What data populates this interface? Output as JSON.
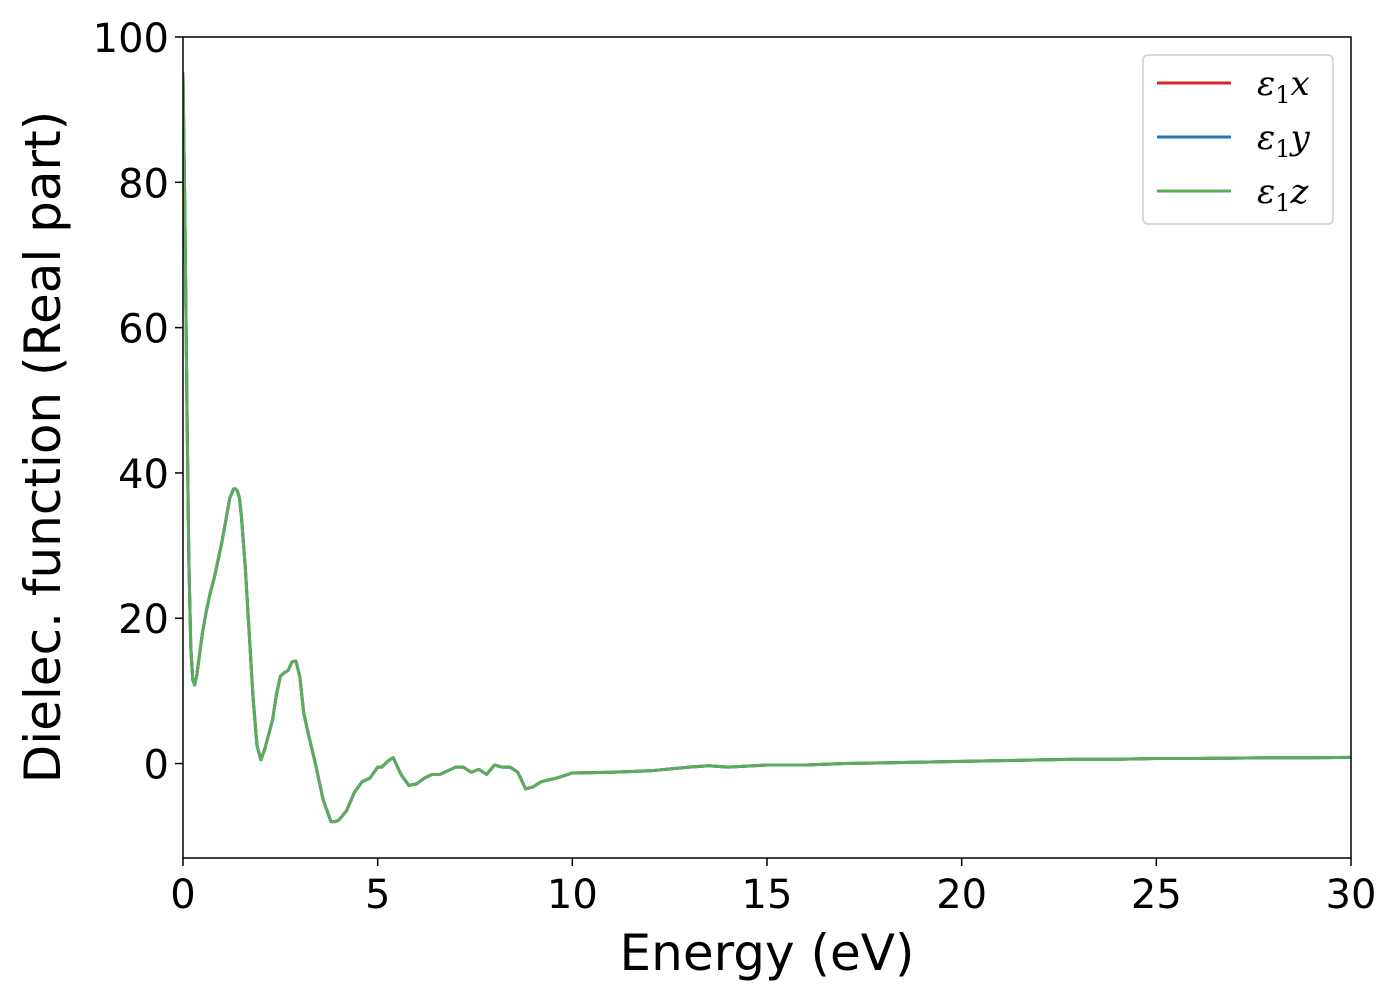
{
  "chart_data": {
    "type": "line",
    "xlabel": "Energy (eV)",
    "ylabel": "Dielec. function (Real part)",
    "xlim": [
      0,
      30
    ],
    "ylim": [
      -13,
      100
    ],
    "xticks": [
      0,
      5,
      10,
      15,
      20,
      25,
      30
    ],
    "yticks": [
      0,
      20,
      40,
      60,
      80,
      100
    ],
    "grid": false,
    "legend_position": "top-right",
    "series": [
      {
        "name": "ε₁x",
        "legend": {
          "base": "ε",
          "sub": "1",
          "var": "x"
        },
        "color": "#d62728",
        "x": [
          0.0,
          0.05,
          0.1,
          0.15,
          0.2,
          0.25,
          0.3,
          0.35,
          0.4,
          0.5,
          0.6,
          0.7,
          0.8,
          0.9,
          1.0,
          1.1,
          1.2,
          1.3,
          1.35,
          1.4,
          1.45,
          1.5,
          1.6,
          1.7,
          1.8,
          1.9,
          2.0,
          2.1,
          2.2,
          2.3,
          2.4,
          2.5,
          2.6,
          2.7,
          2.8,
          2.9,
          3.0,
          3.1,
          3.2,
          3.4,
          3.6,
          3.8,
          3.9,
          4.0,
          4.2,
          4.4,
          4.6,
          4.8,
          5.0,
          5.1,
          5.2,
          5.3,
          5.4,
          5.6,
          5.8,
          6.0,
          6.2,
          6.4,
          6.6,
          6.8,
          7.0,
          7.2,
          7.4,
          7.6,
          7.8,
          8.0,
          8.2,
          8.4,
          8.6,
          8.8,
          9.0,
          9.2,
          9.6,
          10.0,
          11.0,
          12.0,
          13.0,
          13.5,
          14.0,
          15.0,
          16.0,
          17.0,
          18.0,
          19.0,
          20.0,
          21.0,
          22.0,
          23.0,
          24.0,
          25.0,
          26.0,
          27.0,
          28.0,
          29.0,
          30.0
        ],
        "y": [
          95,
          75,
          50,
          28,
          16,
          11.5,
          10.8,
          12,
          14,
          18,
          21,
          23.5,
          25.5,
          28,
          30.5,
          33.5,
          36.5,
          37.8,
          37.8,
          37.5,
          36.5,
          34,
          27,
          18,
          9,
          2.5,
          0.5,
          2,
          4,
          6,
          9.5,
          12,
          12.5,
          12.8,
          14,
          14.1,
          12,
          7,
          4.5,
          0,
          -5,
          -8,
          -8,
          -7.8,
          -6.5,
          -4,
          -2.5,
          -2,
          -0.5,
          -0.5,
          0,
          0.5,
          0.8,
          -1.5,
          -3,
          -2.8,
          -2,
          -1.5,
          -1.5,
          -1,
          -0.5,
          -0.5,
          -1.2,
          -0.8,
          -1.5,
          -0.2,
          -0.5,
          -0.5,
          -1.2,
          -3.5,
          -3.2,
          -2.5,
          -2.0,
          -1.3,
          -1.2,
          -1.0,
          -0.5,
          -0.3,
          -0.5,
          -0.2,
          -0.2,
          0.0,
          0.1,
          0.2,
          0.3,
          0.4,
          0.5,
          0.6,
          0.6,
          0.7,
          0.7,
          0.75,
          0.8,
          0.8,
          0.85
        ]
      },
      {
        "name": "ε₁y",
        "legend": {
          "base": "ε",
          "sub": "1",
          "var": "y"
        },
        "color": "#1f77b4",
        "x": [
          0.0,
          0.05,
          0.1,
          0.15,
          0.2,
          0.25,
          0.3,
          0.35,
          0.4,
          0.5,
          0.6,
          0.7,
          0.8,
          0.9,
          1.0,
          1.1,
          1.2,
          1.3,
          1.35,
          1.4,
          1.45,
          1.5,
          1.6,
          1.7,
          1.8,
          1.9,
          2.0,
          2.1,
          2.2,
          2.3,
          2.4,
          2.5,
          2.6,
          2.7,
          2.8,
          2.9,
          3.0,
          3.1,
          3.2,
          3.4,
          3.6,
          3.8,
          3.9,
          4.0,
          4.2,
          4.4,
          4.6,
          4.8,
          5.0,
          5.1,
          5.2,
          5.3,
          5.4,
          5.6,
          5.8,
          6.0,
          6.2,
          6.4,
          6.6,
          6.8,
          7.0,
          7.2,
          7.4,
          7.6,
          7.8,
          8.0,
          8.2,
          8.4,
          8.6,
          8.8,
          9.0,
          9.2,
          9.6,
          10.0,
          11.0,
          12.0,
          13.0,
          13.5,
          14.0,
          15.0,
          16.0,
          17.0,
          18.0,
          19.0,
          20.0,
          21.0,
          22.0,
          23.0,
          24.0,
          25.0,
          26.0,
          27.0,
          28.0,
          29.0,
          30.0
        ],
        "y": [
          95,
          75,
          50,
          28,
          16,
          11.5,
          10.8,
          12,
          14,
          18,
          21,
          23.5,
          25.5,
          28,
          30.5,
          33.5,
          36.5,
          37.8,
          37.8,
          37.5,
          36.5,
          34,
          27,
          18,
          9,
          2.5,
          0.5,
          2,
          4,
          6,
          9.5,
          12,
          12.5,
          12.8,
          14,
          14.1,
          12,
          7,
          4.5,
          0,
          -5,
          -8,
          -8,
          -7.8,
          -6.5,
          -4,
          -2.5,
          -2,
          -0.5,
          -0.5,
          0,
          0.5,
          0.8,
          -1.5,
          -3,
          -2.8,
          -2,
          -1.5,
          -1.5,
          -1,
          -0.5,
          -0.5,
          -1.2,
          -0.8,
          -1.5,
          -0.2,
          -0.5,
          -0.5,
          -1.2,
          -3.5,
          -3.2,
          -2.5,
          -2.0,
          -1.3,
          -1.2,
          -1.0,
          -0.5,
          -0.3,
          -0.5,
          -0.2,
          -0.2,
          0.0,
          0.1,
          0.2,
          0.3,
          0.4,
          0.5,
          0.6,
          0.6,
          0.7,
          0.7,
          0.75,
          0.8,
          0.8,
          0.85
        ]
      },
      {
        "name": "ε₁z",
        "legend": {
          "base": "ε",
          "sub": "1",
          "var": "z"
        },
        "color": "#5aad5a",
        "x": [
          0.0,
          0.05,
          0.1,
          0.15,
          0.2,
          0.25,
          0.3,
          0.35,
          0.4,
          0.5,
          0.6,
          0.7,
          0.8,
          0.9,
          1.0,
          1.1,
          1.2,
          1.3,
          1.35,
          1.4,
          1.45,
          1.5,
          1.6,
          1.7,
          1.8,
          1.9,
          2.0,
          2.1,
          2.2,
          2.3,
          2.4,
          2.5,
          2.6,
          2.7,
          2.8,
          2.9,
          3.0,
          3.1,
          3.2,
          3.4,
          3.6,
          3.8,
          3.9,
          4.0,
          4.2,
          4.4,
          4.6,
          4.8,
          5.0,
          5.1,
          5.2,
          5.3,
          5.4,
          5.6,
          5.8,
          6.0,
          6.2,
          6.4,
          6.6,
          6.8,
          7.0,
          7.2,
          7.4,
          7.6,
          7.8,
          8.0,
          8.2,
          8.4,
          8.6,
          8.8,
          9.0,
          9.2,
          9.6,
          10.0,
          11.0,
          12.0,
          13.0,
          13.5,
          14.0,
          15.0,
          16.0,
          17.0,
          18.0,
          19.0,
          20.0,
          21.0,
          22.0,
          23.0,
          24.0,
          25.0,
          26.0,
          27.0,
          28.0,
          29.0,
          30.0
        ],
        "y": [
          95,
          75,
          50,
          28,
          16,
          11.5,
          10.8,
          12,
          14,
          18,
          21,
          23.5,
          25.5,
          28,
          30.5,
          33.5,
          36.5,
          37.8,
          37.8,
          37.5,
          36.5,
          34,
          27,
          18,
          9,
          2.5,
          0.5,
          2,
          4,
          6,
          9.5,
          12,
          12.5,
          12.8,
          14,
          14.1,
          12,
          7,
          4.5,
          0,
          -5,
          -8,
          -8,
          -7.8,
          -6.5,
          -4,
          -2.5,
          -2,
          -0.5,
          -0.5,
          0,
          0.5,
          0.8,
          -1.5,
          -3,
          -2.8,
          -2,
          -1.5,
          -1.5,
          -1,
          -0.5,
          -0.5,
          -1.2,
          -0.8,
          -1.5,
          -0.2,
          -0.5,
          -0.5,
          -1.2,
          -3.5,
          -3.2,
          -2.5,
          -2.0,
          -1.3,
          -1.2,
          -1.0,
          -0.5,
          -0.3,
          -0.5,
          -0.2,
          -0.2,
          0.0,
          0.1,
          0.2,
          0.3,
          0.4,
          0.5,
          0.6,
          0.6,
          0.7,
          0.7,
          0.75,
          0.8,
          0.8,
          0.85
        ]
      }
    ]
  }
}
